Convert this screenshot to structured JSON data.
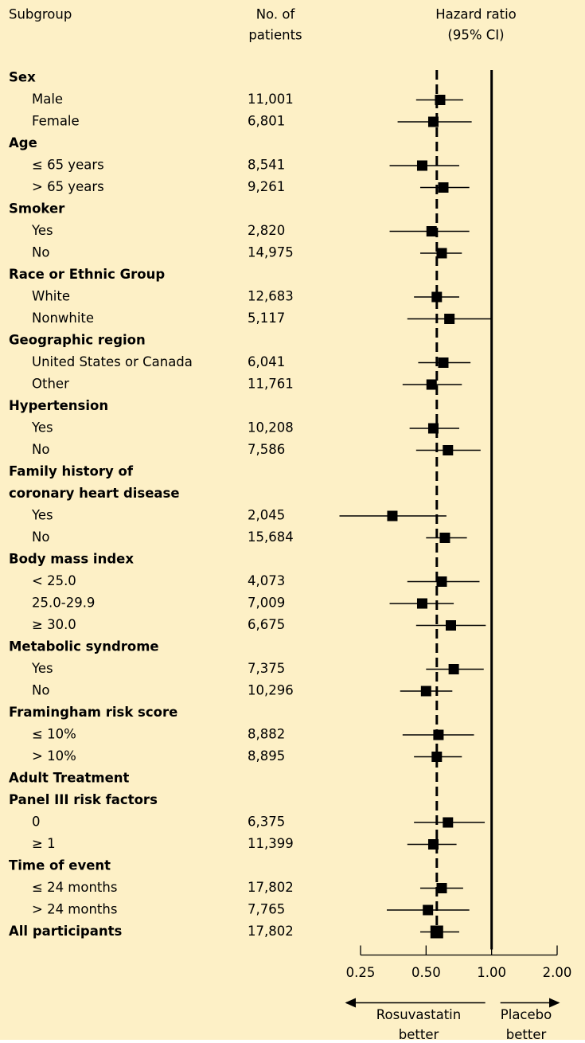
{
  "chart_data": {
    "type": "forest",
    "headers": [
      [
        "Subgroup"
      ],
      [
        "No. of",
        "patients"
      ],
      [
        "Hazard ratio",
        "(95% CI)"
      ]
    ],
    "groups": [
      {
        "name": [
          "Sex"
        ],
        "rows": [
          {
            "label": "Male",
            "n": "11,001",
            "hr": 0.58,
            "lo": 0.45,
            "hi": 0.74
          },
          {
            "label": "Female",
            "n": "6,801",
            "hr": 0.54,
            "lo": 0.37,
            "hi": 0.81
          }
        ]
      },
      {
        "name": [
          "Age"
        ],
        "rows": [
          {
            "label": "≤ 65 years",
            "n": "8,541",
            "hr": 0.48,
            "lo": 0.34,
            "hi": 0.71
          },
          {
            "label": "> 65 years",
            "n": "9,261",
            "hr": 0.6,
            "lo": 0.47,
            "hi": 0.79
          }
        ]
      },
      {
        "name": [
          "Smoker"
        ],
        "rows": [
          {
            "label": "Yes",
            "n": "2,820",
            "hr": 0.53,
            "lo": 0.34,
            "hi": 0.79
          },
          {
            "label": "No",
            "n": "14,975",
            "hr": 0.59,
            "lo": 0.47,
            "hi": 0.73
          }
        ]
      },
      {
        "name": [
          "Race or Ethnic Group"
        ],
        "rows": [
          {
            "label": "White",
            "n": "12,683",
            "hr": 0.56,
            "lo": 0.44,
            "hi": 0.71
          },
          {
            "label": "Nonwhite",
            "n": "5,117",
            "hr": 0.64,
            "lo": 0.41,
            "hi": 1.0
          }
        ]
      },
      {
        "name": [
          "Geographic region"
        ],
        "rows": [
          {
            "label": "United States or Canada",
            "n": "6,041",
            "hr": 0.6,
            "lo": 0.46,
            "hi": 0.8
          },
          {
            "label": "Other",
            "n": "11,761",
            "hr": 0.53,
            "lo": 0.39,
            "hi": 0.73
          }
        ]
      },
      {
        "name": [
          "Hypertension"
        ],
        "rows": [
          {
            "label": "Yes",
            "n": "10,208",
            "hr": 0.54,
            "lo": 0.42,
            "hi": 0.71
          },
          {
            "label": "No",
            "n": "7,586",
            "hr": 0.63,
            "lo": 0.45,
            "hi": 0.89
          }
        ]
      },
      {
        "name": [
          "Family history of",
          "coronary heart disease"
        ],
        "rows": [
          {
            "label": "Yes",
            "n": "2,045",
            "hr": 0.35,
            "lo": 0.2,
            "hi": 0.62
          },
          {
            "label": "No",
            "n": "15,684",
            "hr": 0.61,
            "lo": 0.5,
            "hi": 0.77
          }
        ]
      },
      {
        "name": [
          "Body mass index"
        ],
        "rows": [
          {
            "label": "< 25.0",
            "n": "4,073",
            "hr": 0.59,
            "lo": 0.41,
            "hi": 0.88
          },
          {
            "label": "25.0-29.9",
            "n": "7,009",
            "hr": 0.48,
            "lo": 0.34,
            "hi": 0.67
          },
          {
            "label": "≥ 30.0",
            "n": "6,675",
            "hr": 0.65,
            "lo": 0.45,
            "hi": 0.94
          }
        ]
      },
      {
        "name": [
          "Metabolic syndrome"
        ],
        "rows": [
          {
            "label": "Yes",
            "n": "7,375",
            "hr": 0.67,
            "lo": 0.5,
            "hi": 0.92
          },
          {
            "label": "No",
            "n": "10,296",
            "hr": 0.5,
            "lo": 0.38,
            "hi": 0.66
          }
        ]
      },
      {
        "name": [
          "Framingham risk score"
        ],
        "rows": [
          {
            "label": "≤ 10%",
            "n": "8,882",
            "hr": 0.57,
            "lo": 0.39,
            "hi": 0.83
          },
          {
            "label": "> 10%",
            "n": "8,895",
            "hr": 0.56,
            "lo": 0.44,
            "hi": 0.73
          }
        ]
      },
      {
        "name": [
          "Adult Treatment",
          "Panel III risk factors"
        ],
        "rows": [
          {
            "label": "0",
            "n": "6,375",
            "hr": 0.63,
            "lo": 0.44,
            "hi": 0.93
          },
          {
            "label": "≥ 1",
            "n": "11,399",
            "hr": 0.54,
            "lo": 0.41,
            "hi": 0.69
          }
        ]
      },
      {
        "name": [
          "Time of event"
        ],
        "rows": [
          {
            "label": "≤ 24 months",
            "n": "17,802",
            "hr": 0.59,
            "lo": 0.47,
            "hi": 0.74
          },
          {
            "label": "> 24 months",
            "n": "7,765",
            "hr": 0.51,
            "lo": 0.33,
            "hi": 0.79
          }
        ]
      }
    ],
    "overall": {
      "label": "All participants",
      "n": "17,802",
      "hr": 0.56,
      "lo": 0.47,
      "hi": 0.71
    },
    "xlim": [
      0.25,
      2
    ],
    "xticks": [
      {
        "value": 0.25,
        "label": "0.25"
      },
      {
        "value": 0.5,
        "label": "0.50"
      },
      {
        "value": 1,
        "label": "1.00"
      },
      {
        "value": 2,
        "label": "2.00"
      }
    ],
    "log_scale": true,
    "reference": 1,
    "left_label": [
      "Rosuvastatin",
      "better"
    ],
    "right_label": [
      "Placebo",
      "better"
    ],
    "color": "#000000",
    "background": "#fdf0c6"
  }
}
